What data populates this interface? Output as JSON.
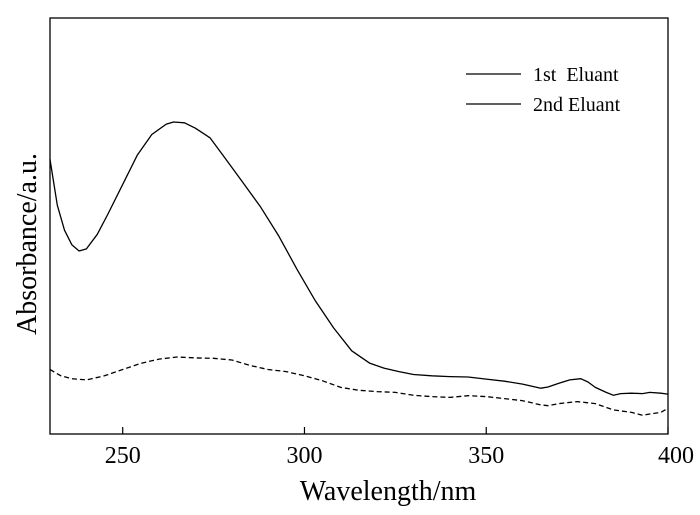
{
  "chart_data": {
    "type": "line",
    "title": "",
    "xlabel": "Wavelength/nm",
    "ylabel": "Absorbance/a.u.",
    "xlim": [
      230,
      400
    ],
    "ylim": [
      0,
      1
    ],
    "x_ticks": [
      "250",
      "300",
      "350",
      "400"
    ],
    "y_ticks_shown": false,
    "grid": false,
    "legend_position": "top-right",
    "series": [
      {
        "name": "1st  Eluant",
        "line_style": "solid",
        "color": "#000000",
        "x": [
          230,
          232,
          234,
          236,
          238,
          240,
          243,
          246,
          250,
          254,
          258,
          262,
          264,
          267,
          270,
          274,
          278,
          283,
          288,
          293,
          298,
          303,
          308,
          313,
          318,
          322,
          326,
          330,
          335,
          340,
          345,
          350,
          355,
          360,
          365,
          367,
          370,
          373,
          376,
          378,
          380,
          383,
          385,
          387,
          390,
          393,
          395,
          398,
          400
        ],
        "values": [
          0.66,
          0.55,
          0.49,
          0.455,
          0.44,
          0.445,
          0.48,
          0.53,
          0.6,
          0.67,
          0.72,
          0.745,
          0.75,
          0.748,
          0.735,
          0.712,
          0.665,
          0.605,
          0.545,
          0.475,
          0.395,
          0.32,
          0.255,
          0.2,
          0.17,
          0.158,
          0.15,
          0.143,
          0.14,
          0.138,
          0.137,
          0.132,
          0.127,
          0.12,
          0.11,
          0.113,
          0.122,
          0.13,
          0.133,
          0.125,
          0.112,
          0.1,
          0.093,
          0.097,
          0.098,
          0.097,
          0.1,
          0.098,
          0.096
        ]
      },
      {
        "name": "2nd Eluant",
        "line_style": "dashed",
        "color": "#000000",
        "x": [
          230,
          233,
          236,
          240,
          245,
          250,
          255,
          260,
          265,
          270,
          275,
          280,
          285,
          290,
          295,
          300,
          305,
          310,
          315,
          320,
          325,
          330,
          335,
          340,
          345,
          350,
          355,
          360,
          365,
          367,
          370,
          375,
          380,
          385,
          390,
          393,
          395,
          398,
          400
        ],
        "values": [
          0.155,
          0.14,
          0.133,
          0.13,
          0.14,
          0.155,
          0.17,
          0.18,
          0.185,
          0.183,
          0.182,
          0.178,
          0.165,
          0.155,
          0.15,
          0.14,
          0.128,
          0.112,
          0.105,
          0.102,
          0.1,
          0.093,
          0.09,
          0.088,
          0.092,
          0.09,
          0.085,
          0.08,
          0.07,
          0.068,
          0.073,
          0.078,
          0.073,
          0.058,
          0.052,
          0.045,
          0.048,
          0.052,
          0.062
        ]
      }
    ]
  }
}
